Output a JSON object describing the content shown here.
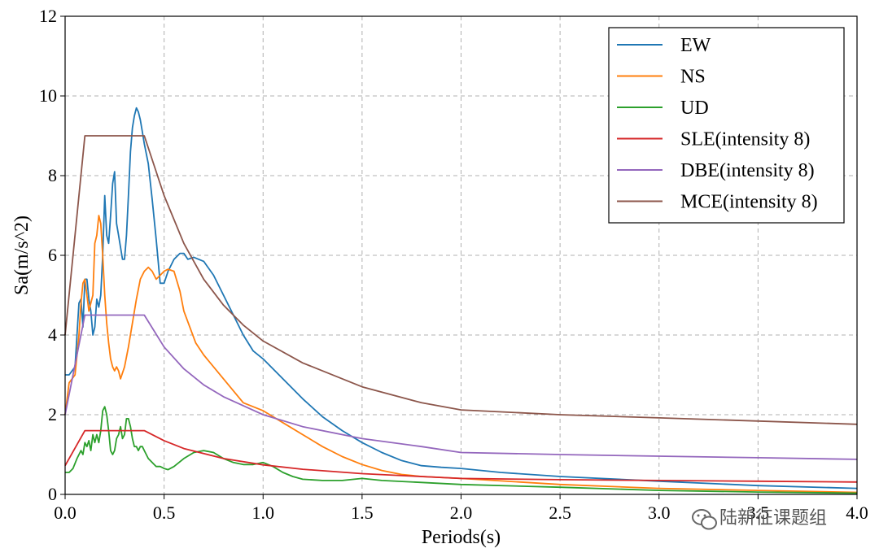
{
  "chart_data": {
    "type": "line",
    "title": "",
    "xlabel": "Periods(s)",
    "ylabel": "Sa(m/s^2)",
    "xlim": [
      0,
      4.0
    ],
    "ylim": [
      0,
      12
    ],
    "xticks": [
      0.0,
      0.5,
      1.0,
      1.5,
      2.0,
      2.5,
      3.0,
      3.5,
      4.0
    ],
    "xtick_labels": [
      "0.0",
      "0.5",
      "1.0",
      "1.5",
      "2.0",
      "2.5",
      "3.0",
      "3.5",
      "4.0"
    ],
    "yticks": [
      0,
      2,
      4,
      6,
      8,
      10,
      12
    ],
    "ytick_labels": [
      "0",
      "2",
      "4",
      "6",
      "8",
      "10",
      "12"
    ],
    "grid": true,
    "legend_position": "top-right",
    "series": [
      {
        "name": "EW",
        "color": "#1f77b4",
        "x": [
          0,
          0.02,
          0.05,
          0.07,
          0.08,
          0.09,
          0.1,
          0.11,
          0.12,
          0.13,
          0.14,
          0.15,
          0.16,
          0.17,
          0.18,
          0.19,
          0.2,
          0.21,
          0.22,
          0.23,
          0.24,
          0.25,
          0.26,
          0.27,
          0.28,
          0.29,
          0.3,
          0.31,
          0.32,
          0.33,
          0.34,
          0.35,
          0.36,
          0.37,
          0.38,
          0.39,
          0.4,
          0.42,
          0.44,
          0.46,
          0.48,
          0.5,
          0.52,
          0.55,
          0.58,
          0.6,
          0.62,
          0.65,
          0.7,
          0.75,
          0.8,
          0.85,
          0.9,
          0.95,
          1.0,
          1.1,
          1.2,
          1.3,
          1.4,
          1.5,
          1.6,
          1.7,
          1.8,
          1.9,
          2.0,
          2.2,
          2.5,
          3.0,
          3.5,
          4.0
        ],
        "y": [
          3.0,
          3.0,
          3.2,
          4.8,
          4.9,
          4.2,
          5.4,
          5.4,
          4.9,
          4.6,
          4.0,
          4.2,
          4.9,
          4.7,
          5.0,
          6.0,
          7.5,
          6.5,
          6.3,
          7.0,
          7.8,
          8.1,
          6.8,
          6.5,
          6.2,
          5.9,
          5.9,
          6.5,
          7.5,
          8.6,
          9.2,
          9.5,
          9.7,
          9.6,
          9.4,
          9.1,
          8.8,
          8.3,
          7.4,
          6.4,
          5.3,
          5.3,
          5.6,
          5.9,
          6.05,
          6.05,
          5.9,
          5.95,
          5.85,
          5.5,
          5.0,
          4.5,
          4.0,
          3.6,
          3.4,
          2.9,
          2.4,
          1.95,
          1.6,
          1.3,
          1.05,
          0.85,
          0.72,
          0.68,
          0.65,
          0.55,
          0.45,
          0.33,
          0.22,
          0.15
        ]
      },
      {
        "name": "NS",
        "color": "#ff7f0e",
        "x": [
          0,
          0.02,
          0.05,
          0.07,
          0.08,
          0.09,
          0.1,
          0.11,
          0.12,
          0.13,
          0.14,
          0.15,
          0.16,
          0.17,
          0.18,
          0.19,
          0.2,
          0.21,
          0.22,
          0.23,
          0.24,
          0.25,
          0.26,
          0.27,
          0.28,
          0.3,
          0.32,
          0.34,
          0.36,
          0.38,
          0.4,
          0.42,
          0.44,
          0.46,
          0.48,
          0.5,
          0.52,
          0.55,
          0.58,
          0.6,
          0.63,
          0.66,
          0.7,
          0.8,
          0.9,
          0.95,
          1.0,
          1.1,
          1.2,
          1.3,
          1.4,
          1.5,
          1.6,
          1.7,
          1.8,
          2.0,
          2.5,
          3.0,
          3.5,
          4.0
        ],
        "y": [
          2.0,
          2.8,
          3.0,
          4.0,
          4.8,
          5.3,
          5.4,
          5.0,
          4.6,
          4.8,
          5.0,
          6.3,
          6.5,
          7.0,
          6.8,
          6.0,
          5.0,
          4.3,
          3.8,
          3.4,
          3.2,
          3.1,
          3.2,
          3.1,
          2.9,
          3.2,
          3.7,
          4.3,
          4.9,
          5.4,
          5.6,
          5.7,
          5.6,
          5.4,
          5.5,
          5.6,
          5.65,
          5.6,
          5.1,
          4.6,
          4.2,
          3.8,
          3.5,
          2.9,
          2.3,
          2.2,
          2.1,
          1.8,
          1.5,
          1.2,
          0.95,
          0.75,
          0.6,
          0.5,
          0.45,
          0.4,
          0.25,
          0.15,
          0.1,
          0.05
        ]
      },
      {
        "name": "UD",
        "color": "#2ca02c",
        "x": [
          0,
          0.02,
          0.04,
          0.06,
          0.08,
          0.09,
          0.1,
          0.11,
          0.12,
          0.13,
          0.14,
          0.15,
          0.16,
          0.17,
          0.18,
          0.19,
          0.2,
          0.21,
          0.22,
          0.23,
          0.24,
          0.25,
          0.26,
          0.27,
          0.28,
          0.29,
          0.3,
          0.31,
          0.32,
          0.33,
          0.34,
          0.35,
          0.36,
          0.37,
          0.38,
          0.39,
          0.4,
          0.42,
          0.44,
          0.46,
          0.48,
          0.5,
          0.52,
          0.55,
          0.6,
          0.65,
          0.7,
          0.75,
          0.8,
          0.85,
          0.9,
          0.95,
          1.0,
          1.05,
          1.1,
          1.15,
          1.2,
          1.3,
          1.4,
          1.5,
          1.6,
          1.8,
          2.0,
          2.5,
          3.0,
          3.5,
          4.0
        ],
        "y": [
          0.55,
          0.55,
          0.65,
          0.9,
          1.1,
          1.0,
          1.3,
          1.2,
          1.35,
          1.1,
          1.5,
          1.3,
          1.5,
          1.3,
          1.6,
          2.1,
          2.2,
          2.0,
          1.6,
          1.1,
          1.0,
          1.1,
          1.4,
          1.5,
          1.7,
          1.4,
          1.5,
          1.9,
          1.9,
          1.7,
          1.4,
          1.2,
          1.2,
          1.1,
          1.2,
          1.2,
          1.1,
          0.9,
          0.8,
          0.7,
          0.7,
          0.65,
          0.62,
          0.7,
          0.9,
          1.05,
          1.1,
          1.05,
          0.9,
          0.8,
          0.75,
          0.75,
          0.8,
          0.7,
          0.55,
          0.45,
          0.38,
          0.35,
          0.35,
          0.4,
          0.35,
          0.3,
          0.25,
          0.18,
          0.1,
          0.06,
          0.03
        ]
      },
      {
        "name": "SLE(intensity 8)",
        "color": "#d62728",
        "x": [
          0,
          0.1,
          0.4,
          0.5,
          0.6,
          0.8,
          1.0,
          1.2,
          1.5,
          2.0,
          2.5,
          3.0,
          3.5,
          4.0
        ],
        "y": [
          0.72,
          1.6,
          1.6,
          1.35,
          1.15,
          0.9,
          0.74,
          0.63,
          0.52,
          0.4,
          0.37,
          0.35,
          0.33,
          0.31
        ]
      },
      {
        "name": "DBE(intensity 8)",
        "color": "#9467bd",
        "x": [
          0,
          0.1,
          0.4,
          0.5,
          0.6,
          0.7,
          0.8,
          1.0,
          1.2,
          1.5,
          1.8,
          2.0,
          2.5,
          3.0,
          3.5,
          4.0
        ],
        "y": [
          2.0,
          4.5,
          4.5,
          3.7,
          3.15,
          2.75,
          2.45,
          2.0,
          1.7,
          1.4,
          1.2,
          1.05,
          1.0,
          0.96,
          0.92,
          0.88
        ]
      },
      {
        "name": "MCE(intensity 8)",
        "color": "#8c564b",
        "x": [
          0,
          0.1,
          0.4,
          0.5,
          0.6,
          0.7,
          0.8,
          0.9,
          1.0,
          1.2,
          1.5,
          1.8,
          2.0,
          2.5,
          3.0,
          3.5,
          4.0
        ],
        "y": [
          4.0,
          9.0,
          9.0,
          7.5,
          6.3,
          5.4,
          4.75,
          4.25,
          3.85,
          3.3,
          2.7,
          2.3,
          2.12,
          2.0,
          1.92,
          1.84,
          1.76
        ]
      }
    ]
  },
  "watermark": {
    "text": "陆新征课题组",
    "icon": "wechat-icon"
  }
}
